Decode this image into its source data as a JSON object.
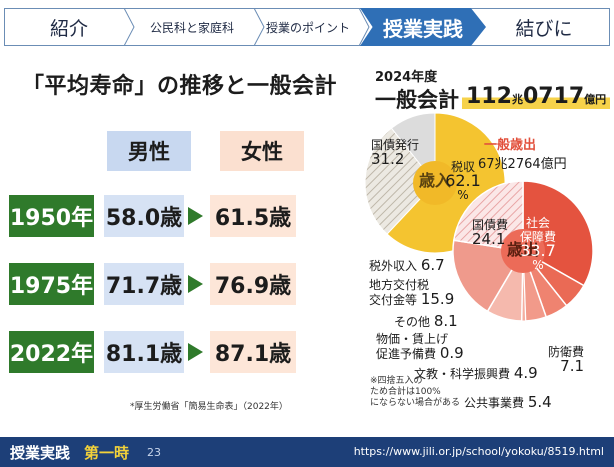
{
  "nav": {
    "steps": [
      "紹介",
      "公民科と家庭科",
      "授業のポイント",
      "授業実践",
      "結びに"
    ],
    "active_color": "#2f6fb6"
  },
  "heading": "「平均寿命」の推移と一般会計",
  "life": {
    "male_label": "男性",
    "female_label": "女性",
    "rows": [
      {
        "year": "1950年",
        "male": "58.0歳",
        "female": "61.5歳"
      },
      {
        "year": "1975年",
        "male": "71.7歳",
        "female": "76.9歳"
      },
      {
        "year": "2022年",
        "male": "81.1歳",
        "female": "87.1歳"
      }
    ],
    "source": "*厚生労働省「簡易生命表」（2022年）"
  },
  "budget": {
    "fiscal_year": "2024年度",
    "title": "一般会計",
    "total_num1": "112",
    "total_unit1": "兆",
    "total_num2": "0717",
    "total_unit2": "億円",
    "revenue": {
      "center_label": "歳入",
      "items": [
        {
          "label": "税収",
          "value": "62.1",
          "unit": "%"
        },
        {
          "label": "国債発行",
          "value": "31.2"
        },
        {
          "label": "税外収入",
          "value": "6.7"
        }
      ]
    },
    "expenditure": {
      "title": "一般歳出",
      "amount": "67兆2764億円",
      "center_label": "歳出",
      "items": [
        {
          "label": "社会",
          "label2": "保障費",
          "value": "33.7",
          "unit": "%"
        },
        {
          "label": "国債費",
          "value": "24.1"
        },
        {
          "label": "地方交付税",
          "label2": "交付金等",
          "value": "15.9"
        },
        {
          "label": "その他",
          "value": "8.1"
        },
        {
          "label": "物価・賃上げ",
          "label2": "促進予備費",
          "value": "0.9"
        },
        {
          "label": "文教・科学振興費",
          "value": "4.9"
        },
        {
          "label": "公共事業費",
          "value": "5.4"
        },
        {
          "label": "防衛費",
          "value": "7.1"
        }
      ]
    },
    "note": [
      "※四捨五入の",
      "ため合計は100%",
      "にならない場合がある"
    ]
  },
  "footer": {
    "section": "授業実践",
    "period": "第一時",
    "page": "23",
    "url": "https://www.jili.or.jp/school/yokoku/8519.html"
  }
}
